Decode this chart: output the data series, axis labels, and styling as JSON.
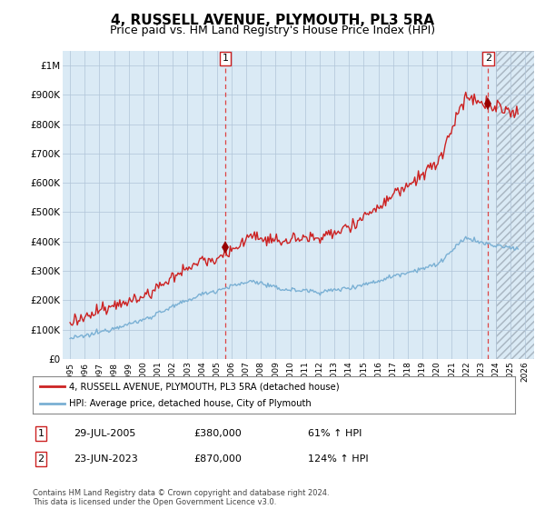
{
  "title": "4, RUSSELL AVENUE, PLYMOUTH, PL3 5RA",
  "subtitle": "Price paid vs. HM Land Registry's House Price Index (HPI)",
  "title_fontsize": 11,
  "subtitle_fontsize": 9,
  "ylabel_ticks": [
    "£0",
    "£100K",
    "£200K",
    "£300K",
    "£400K",
    "£500K",
    "£600K",
    "£700K",
    "£800K",
    "£900K",
    "£1M"
  ],
  "ylim": [
    0,
    1050000
  ],
  "xlim_start": 1994.5,
  "xlim_end": 2026.6,
  "xticks": [
    1995,
    1996,
    1997,
    1998,
    1999,
    2000,
    2001,
    2002,
    2003,
    2004,
    2005,
    2006,
    2007,
    2008,
    2009,
    2010,
    2011,
    2012,
    2013,
    2014,
    2015,
    2016,
    2017,
    2018,
    2019,
    2020,
    2021,
    2022,
    2023,
    2024,
    2025,
    2026
  ],
  "hpi_color": "#7ab0d4",
  "price_color": "#cc2222",
  "dot_color": "#990000",
  "sale1_x": 2005.57,
  "sale1_y": 380000,
  "sale2_x": 2023.47,
  "sale2_y": 870000,
  "legend_line1": "4, RUSSELL AVENUE, PLYMOUTH, PL3 5RA (detached house)",
  "legend_line2": "HPI: Average price, detached house, City of Plymouth",
  "table_row1": [
    "1",
    "29-JUL-2005",
    "£380,000",
    "61% ↑ HPI"
  ],
  "table_row2": [
    "2",
    "23-JUN-2023",
    "£870,000",
    "124% ↑ HPI"
  ],
  "footnote": "Contains HM Land Registry data © Crown copyright and database right 2024.\nThis data is licensed under the Open Government Licence v3.0.",
  "grid_color": "#b0c4d8",
  "bg_color": "#ffffff",
  "chart_bg": "#daeaf5",
  "hatch_start": 2024.0,
  "hatch_color": "#c0c8d0"
}
